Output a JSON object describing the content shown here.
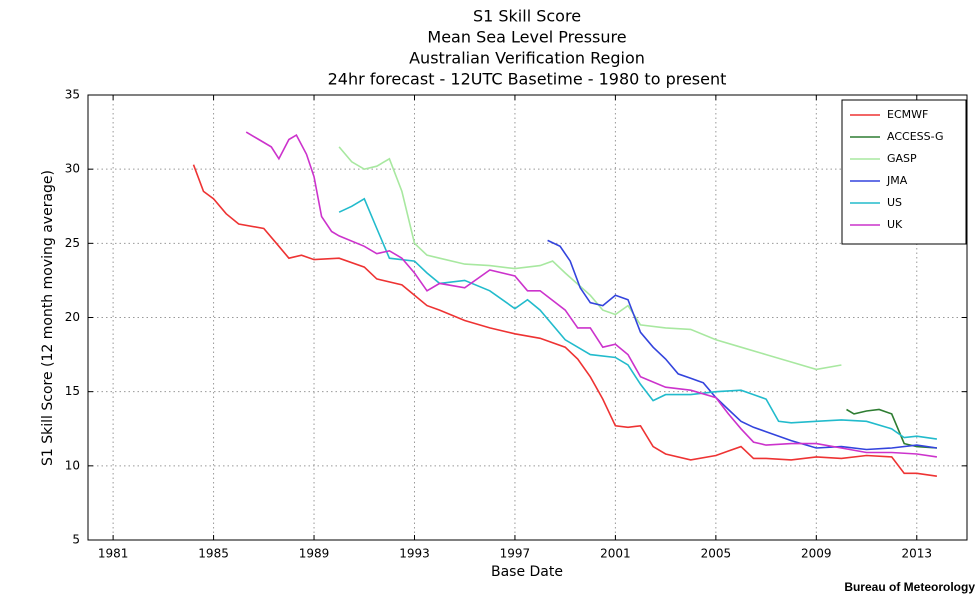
{
  "chart_data": {
    "type": "line",
    "title": [
      "S1 Skill Score",
      "Mean Sea Level Pressure",
      "Australian Verification Region",
      "24hr forecast - 12UTC Basetime - 1980 to present"
    ],
    "xlabel": "Base Date",
    "ylabel": "S1 Skill Score (12 month moving average)",
    "source": "Bureau of Meteorology",
    "xlim": [
      1980,
      2015
    ],
    "xticks": [
      1981,
      1985,
      1989,
      1993,
      1997,
      2001,
      2005,
      2009,
      2013
    ],
    "ylim": [
      5,
      35
    ],
    "yticks": [
      5,
      10,
      15,
      20,
      25,
      30,
      35
    ],
    "grid": true,
    "legend": "upper right",
    "series": [
      {
        "name": "ECMWF",
        "color": "#ee3333",
        "x": [
          1984.2,
          1984.6,
          1985,
          1985.5,
          1986,
          1987,
          1987.5,
          1988,
          1988.5,
          1989,
          1990,
          1991,
          1991.5,
          1992.5,
          1993,
          1993.5,
          1994,
          1995,
          1996,
          1997,
          1998,
          1999,
          1999.5,
          2000,
          2000.5,
          2001,
          2001.5,
          2002,
          2002.5,
          2003,
          2004,
          2005,
          2005.5,
          2006,
          2006.5,
          2007,
          2008,
          2009,
          2010,
          2011,
          2012,
          2012.5,
          2013,
          2013.8
        ],
        "values": [
          30.3,
          28.5,
          28,
          27,
          26.3,
          26,
          25,
          24,
          24.2,
          23.9,
          24,
          23.4,
          22.6,
          22.2,
          21.5,
          20.8,
          20.5,
          19.8,
          19.3,
          18.9,
          18.6,
          18,
          17.2,
          16,
          14.5,
          12.7,
          12.6,
          12.7,
          11.3,
          10.8,
          10.4,
          10.7,
          11,
          11.3,
          10.5,
          10.5,
          10.4,
          10.6,
          10.5,
          10.7,
          10.6,
          9.5,
          9.5,
          9.3
        ]
      },
      {
        "name": "ACCESS-G",
        "color": "#2e7d32",
        "x": [
          2010.2,
          2010.5,
          2011,
          2011.5,
          2012,
          2012.5,
          2013,
          2013.8
        ],
        "values": [
          13.8,
          13.5,
          13.7,
          13.8,
          13.5,
          11.5,
          11.3,
          11.2
        ]
      },
      {
        "name": "GASP",
        "color": "#a8e8a0",
        "x": [
          1990,
          1990.5,
          1991,
          1991.5,
          1992,
          1992.5,
          1993,
          1993.5,
          1994,
          1995,
          1996,
          1997,
          1998,
          1998.5,
          1999,
          2000,
          2000.5,
          2001,
          2001.5,
          2002,
          2003,
          2004,
          2005,
          2006,
          2007,
          2008,
          2009,
          2010
        ],
        "values": [
          31.5,
          30.5,
          30,
          30.2,
          30.7,
          28.5,
          25,
          24.2,
          24,
          23.6,
          23.5,
          23.3,
          23.5,
          23.8,
          23,
          21.5,
          20.5,
          20.2,
          20.8,
          19.5,
          19.3,
          19.2,
          18.5,
          18,
          17.5,
          17,
          16.5,
          16.8
        ]
      },
      {
        "name": "JMA",
        "color": "#3344dd",
        "x": [
          1998.3,
          1998.8,
          1999.2,
          1999.6,
          2000,
          2000.5,
          2001,
          2001.5,
          2002,
          2002.5,
          2003,
          2003.5,
          2004,
          2004.5,
          2005,
          2005.5,
          2006,
          2006.5,
          2007,
          2008,
          2009,
          2010,
          2011,
          2012,
          2013,
          2013.8
        ],
        "values": [
          25.2,
          24.8,
          23.8,
          22,
          21,
          20.8,
          21.5,
          21.2,
          19,
          18,
          17.2,
          16.2,
          15.9,
          15.6,
          14.6,
          13.8,
          13,
          12.6,
          12.3,
          11.7,
          11.2,
          11.3,
          11.1,
          11.2,
          11.4,
          11.2
        ]
      },
      {
        "name": "US",
        "color": "#22bbcc",
        "x": [
          1990,
          1990.5,
          1991,
          1991.5,
          1992,
          1993,
          1993.5,
          1994,
          1995,
          1996,
          1997,
          1997.5,
          1998,
          1999,
          2000,
          2001,
          2001.5,
          2002,
          2002.5,
          2003,
          2004,
          2005,
          2006,
          2006.5,
          2007,
          2007.5,
          2008,
          2009,
          2010,
          2011,
          2012,
          2012.5,
          2013,
          2013.8
        ],
        "values": [
          27.1,
          27.5,
          28,
          26,
          24,
          23.8,
          23,
          22.3,
          22.5,
          21.8,
          20.6,
          21.2,
          20.5,
          18.5,
          17.5,
          17.3,
          16.8,
          15.5,
          14.4,
          14.8,
          14.8,
          15,
          15.1,
          14.8,
          14.5,
          13,
          12.9,
          13,
          13.1,
          13,
          12.5,
          11.9,
          12,
          11.8
        ]
      },
      {
        "name": "UK",
        "color": "#cc33cc",
        "x": [
          1986.3,
          1986.8,
          1987.3,
          1987.6,
          1988,
          1988.3,
          1988.7,
          1989,
          1989.3,
          1989.7,
          1990,
          1991,
          1991.5,
          1992,
          1992.5,
          1993,
          1993.5,
          1994,
          1995,
          1996,
          1997,
          1997.5,
          1998,
          1999,
          1999.5,
          2000,
          2000.5,
          2001,
          2001.5,
          2002,
          2003,
          2004,
          2005,
          2005.5,
          2006,
          2006.5,
          2007,
          2008,
          2009,
          2010,
          2011,
          2012,
          2013,
          2013.8
        ],
        "values": [
          32.5,
          32,
          31.5,
          30.7,
          32,
          32.3,
          31,
          29.5,
          26.8,
          25.8,
          25.5,
          24.8,
          24.3,
          24.5,
          24,
          23,
          21.8,
          22.3,
          22,
          23.2,
          22.8,
          21.8,
          21.8,
          20.5,
          19.3,
          19.3,
          18,
          18.2,
          17.5,
          16,
          15.3,
          15.1,
          14.6,
          13.5,
          12.5,
          11.6,
          11.4,
          11.5,
          11.5,
          11.2,
          10.9,
          10.9,
          10.8,
          10.6
        ]
      }
    ]
  }
}
